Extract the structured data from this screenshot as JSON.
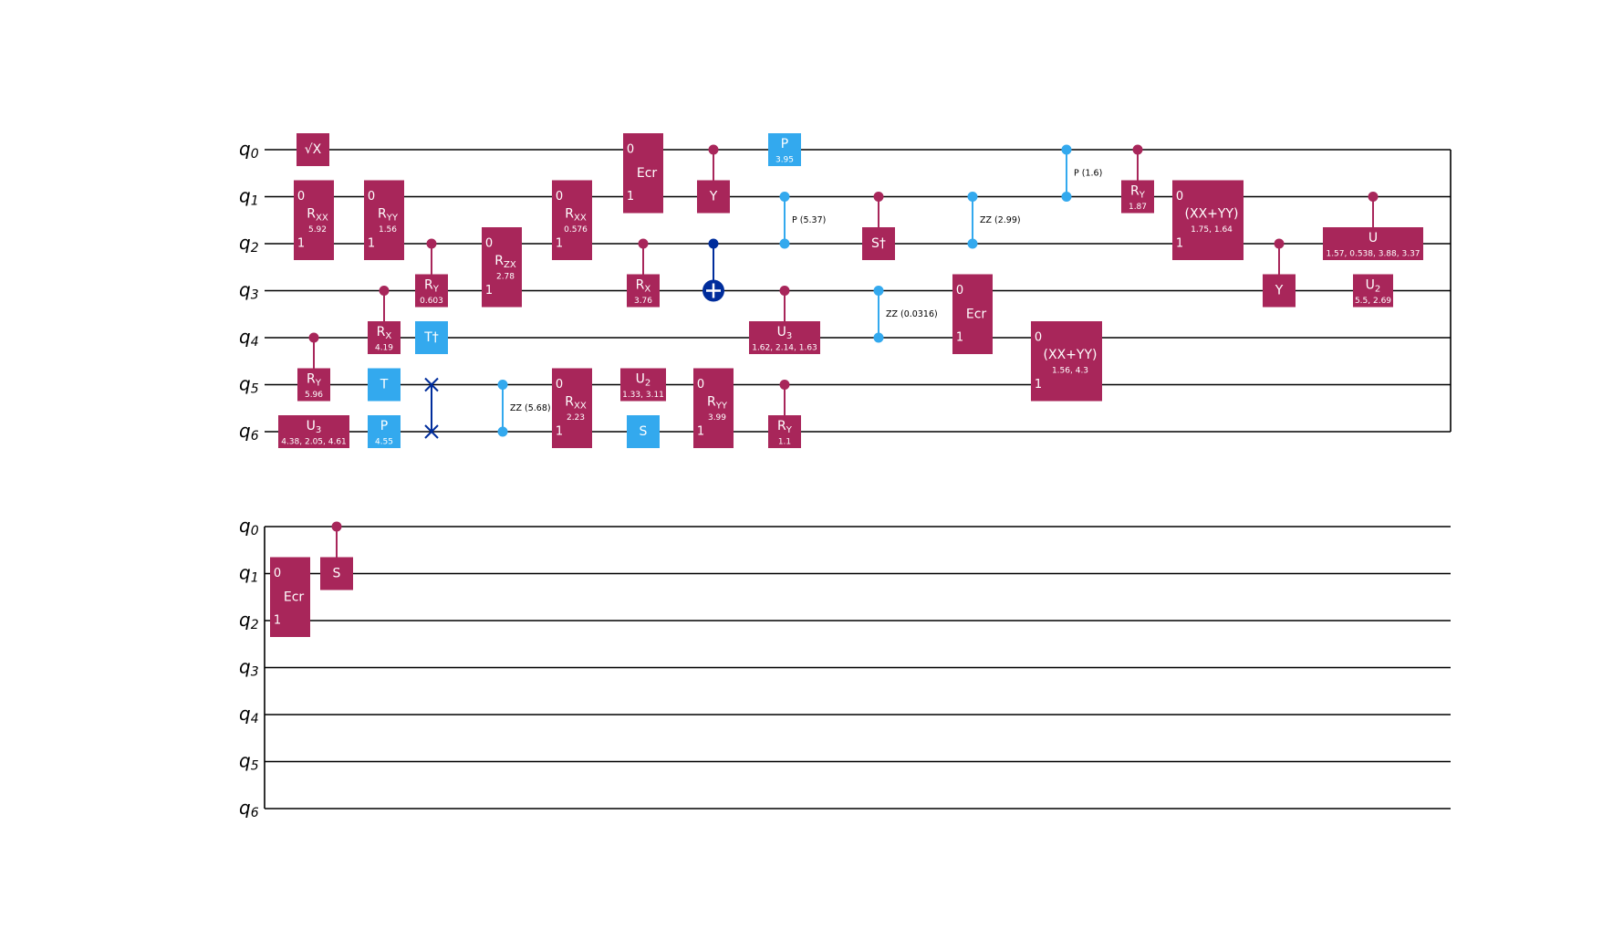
{
  "colors": {
    "gate": "#a8265a",
    "clifford": "#33a9ee",
    "cx": "#002d9c",
    "wire": "#000000",
    "gate_text": "#ffffff",
    "label_text": "#000000"
  },
  "qubits": [
    "q0",
    "q1",
    "q2",
    "q3",
    "q4",
    "q5",
    "q6"
  ],
  "rows": [
    {
      "name": "circuit-row-1",
      "gates": [
        {
          "id": "sx-q0",
          "type": "single",
          "q": 0,
          "label": "√X",
          "color": "clifford-light",
          "param": ""
        },
        {
          "id": "rxx-q1q2",
          "type": "multi",
          "q": [
            1,
            2
          ],
          "label": "RXX",
          "sub": "XX",
          "param": "5.92",
          "pins": [
            "0",
            "1"
          ]
        },
        {
          "id": "ry-ctrl-q4-q5",
          "type": "ctrl",
          "ctrl": 4,
          "target": 5,
          "label": "RY",
          "param": "5.96"
        },
        {
          "id": "u3-q6",
          "type": "single",
          "q": 6,
          "label": "U3",
          "param": "4.38, 2.05, 4.61"
        },
        {
          "id": "ryy-q1q2",
          "type": "multi",
          "q": [
            1,
            2
          ],
          "label": "RYY",
          "param": "1.56",
          "pins": [
            "0",
            "1"
          ]
        },
        {
          "id": "rx-ctrl-q3-q4",
          "type": "ctrl",
          "ctrl": 3,
          "target": 4,
          "label": "RX",
          "param": "4.19"
        },
        {
          "id": "t-q5",
          "type": "single",
          "q": 5,
          "label": "T",
          "param": ""
        },
        {
          "id": "p-q6",
          "type": "single",
          "q": 6,
          "label": "P",
          "param": "4.55"
        },
        {
          "id": "ry-ctrl-q2-q3",
          "type": "ctrl",
          "ctrl": 2,
          "target": 3,
          "label": "RY",
          "param": "0.603"
        },
        {
          "id": "tdg-q4",
          "type": "single",
          "q": 4,
          "label": "T†",
          "param": ""
        },
        {
          "id": "swap-q5q6",
          "type": "swap",
          "q": [
            5,
            6
          ]
        },
        {
          "id": "rzx-q2q3",
          "type": "multi",
          "q": [
            2,
            3
          ],
          "label": "RZX",
          "param": "2.78",
          "pins": [
            "0",
            "1"
          ]
        },
        {
          "id": "zz-q5q6",
          "type": "zz",
          "q": [
            5,
            6
          ],
          "label": "ZZ (5.68)"
        },
        {
          "id": "rxx-q1q2-b",
          "type": "multi",
          "q": [
            1,
            2
          ],
          "label": "RXX",
          "param": "0.576",
          "pins": [
            "0",
            "1"
          ]
        },
        {
          "id": "rxx-q5q6",
          "type": "multi",
          "q": [
            5,
            6
          ],
          "label": "RXX",
          "param": "2.23",
          "pins": [
            "0",
            "1"
          ]
        },
        {
          "id": "ecr-q0q1",
          "type": "multi",
          "q": [
            0,
            1
          ],
          "label": "Ecr",
          "param": "",
          "pins": [
            "0",
            "1"
          ]
        },
        {
          "id": "rx-ctrl-q2-q3",
          "type": "ctrl",
          "ctrl": 2,
          "target": 3,
          "label": "RX",
          "param": "3.76"
        },
        {
          "id": "u2-q5",
          "type": "single",
          "q": 5,
          "label": "U2",
          "param": "1.33, 3.11"
        },
        {
          "id": "s-q6",
          "type": "single",
          "q": 6,
          "label": "S",
          "param": ""
        },
        {
          "id": "y-ctrl-q0-q1",
          "type": "ctrl",
          "ctrl": 0,
          "target": 1,
          "label": "Y",
          "param": ""
        },
        {
          "id": "cx-q2-q3",
          "type": "cx",
          "ctrl": 2,
          "target": 3
        },
        {
          "id": "ryy-q5q6",
          "type": "multi",
          "q": [
            5,
            6
          ],
          "label": "RYY",
          "param": "3.99",
          "pins": [
            "0",
            "1"
          ]
        },
        {
          "id": "p-q0",
          "type": "single",
          "q": 0,
          "label": "P",
          "param": "3.95"
        },
        {
          "id": "cp-q1q2",
          "type": "zz",
          "q": [
            1,
            2
          ],
          "label": "P (5.37)"
        },
        {
          "id": "u3-ctrl-q3-q4",
          "type": "ctrl",
          "ctrl": 3,
          "target": 4,
          "label": "U3",
          "param": "1.62, 2.14, 1.63"
        },
        {
          "id": "ry-ctrl-q5-q6",
          "type": "ctrl",
          "ctrl": 5,
          "target": 6,
          "label": "RY",
          "param": "1.1"
        },
        {
          "id": "sdg-ctrl-q1-q2",
          "type": "ctrl",
          "ctrl": 1,
          "target": 2,
          "label": "S†",
          "param": ""
        },
        {
          "id": "zz-q3q4",
          "type": "zz",
          "q": [
            3,
            4
          ],
          "label": "ZZ (0.0316)"
        },
        {
          "id": "zz-q1q2",
          "type": "zz",
          "q": [
            1,
            2
          ],
          "label": "ZZ (2.99)"
        },
        {
          "id": "ecr-q3q4",
          "type": "multi",
          "q": [
            3,
            4
          ],
          "label": "Ecr",
          "param": "",
          "pins": [
            "0",
            "1"
          ]
        },
        {
          "id": "cp-q0q1",
          "type": "zz",
          "q": [
            0,
            1
          ],
          "label": "P (1.6)"
        },
        {
          "id": "ry-ctrl-q0-q1",
          "type": "ctrl",
          "ctrl": 0,
          "target": 1,
          "label": "RY",
          "param": "1.87"
        },
        {
          "id": "xxyy-q4q5",
          "type": "multi",
          "q": [
            4,
            5
          ],
          "label": "(XX+YY)",
          "param": "1.56, 4.3",
          "pins": [
            "0",
            "1"
          ]
        },
        {
          "id": "xxyy-q1q2",
          "type": "multi",
          "q": [
            1,
            2
          ],
          "label": "(XX+YY)",
          "param": "1.75, 1.64",
          "pins": [
            "0",
            "1"
          ]
        },
        {
          "id": "y-ctrl-q2-q3",
          "type": "ctrl",
          "ctrl": 2,
          "target": 3,
          "label": "Y",
          "param": ""
        },
        {
          "id": "u-ctrl-q1-q2",
          "type": "ctrl",
          "ctrl": 1,
          "target": 2,
          "label": "U",
          "param": "1.57, 0.538, 3.88, 3.37"
        },
        {
          "id": "u2-q3",
          "type": "single",
          "q": 3,
          "label": "U2",
          "param": "5.5, 2.69"
        }
      ]
    },
    {
      "name": "circuit-row-2",
      "gates": [
        {
          "id": "ecr-q1q2",
          "type": "multi",
          "q": [
            1,
            2
          ],
          "label": "Ecr",
          "param": "",
          "pins": [
            "0",
            "1"
          ]
        },
        {
          "id": "s-ctrl-q0-q1",
          "type": "ctrl",
          "ctrl": 0,
          "target": 1,
          "label": "S",
          "param": ""
        }
      ]
    }
  ]
}
